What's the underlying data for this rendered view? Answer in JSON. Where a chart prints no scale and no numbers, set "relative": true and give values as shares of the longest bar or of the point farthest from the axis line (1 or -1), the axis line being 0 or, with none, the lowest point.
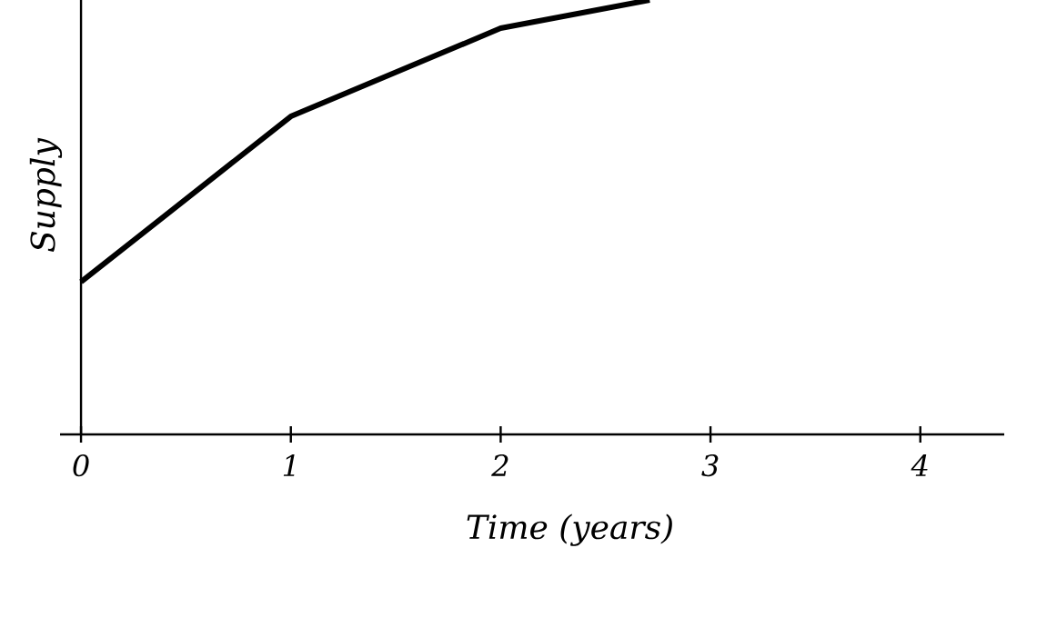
{
  "chart_data": {
    "type": "line",
    "xlabel": "Time (years)",
    "ylabel": "Supply",
    "relative": true,
    "x": [
      0,
      1,
      2,
      2.71
    ],
    "series": [
      {
        "color": "#000000",
        "values": [
          0.351,
          0.732,
          0.935,
          1
        ]
      }
    ],
    "xlim": [
      -0.1,
      4.4
    ],
    "xticks": [
      0,
      1,
      2,
      3,
      4
    ]
  }
}
